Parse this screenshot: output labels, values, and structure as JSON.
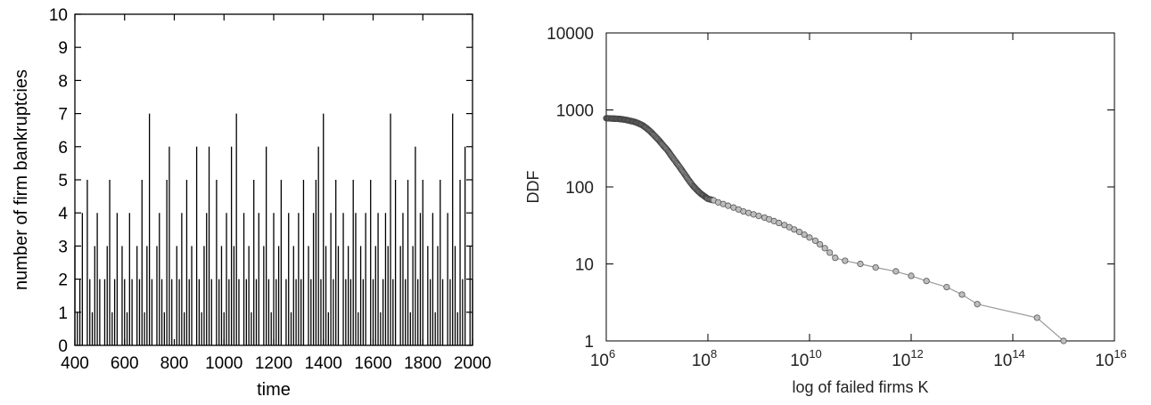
{
  "chart_data": [
    {
      "type": "line",
      "title": "",
      "xlabel": "time",
      "ylabel": "number of firm bankruptcies",
      "xlim": [
        400,
        2000
      ],
      "ylim": [
        0,
        10
      ],
      "x_ticks": [
        "400",
        "600",
        "800",
        "1000",
        "1200",
        "1400",
        "1600",
        "1800",
        "2000"
      ],
      "y_ticks": [
        "0",
        "1",
        "2",
        "3",
        "4",
        "5",
        "6",
        "7",
        "8",
        "9",
        "10"
      ],
      "grid": false,
      "legend": "none",
      "line_color": "#000000",
      "series": [
        {
          "x": [
            400,
            410,
            420,
            430,
            440,
            450,
            460,
            470,
            480,
            490,
            500,
            510,
            520,
            530,
            540,
            550,
            560,
            570,
            580,
            590,
            600,
            610,
            620,
            630,
            640,
            650,
            660,
            670,
            680,
            690,
            700,
            710,
            720,
            730,
            740,
            750,
            760,
            770,
            780,
            790,
            800,
            810,
            820,
            830,
            840,
            850,
            860,
            870,
            880,
            890,
            900,
            910,
            920,
            930,
            940,
            950,
            960,
            970,
            980,
            990,
            1000,
            1010,
            1020,
            1030,
            1040,
            1050,
            1060,
            1070,
            1080,
            1090,
            1100,
            1110,
            1120,
            1130,
            1140,
            1150,
            1160,
            1170,
            1180,
            1190,
            1200,
            1210,
            1220,
            1230,
            1240,
            1250,
            1260,
            1270,
            1280,
            1290,
            1300,
            1310,
            1320,
            1330,
            1340,
            1350,
            1360,
            1370,
            1380,
            1390,
            1400,
            1410,
            1420,
            1430,
            1440,
            1450,
            1460,
            1470,
            1480,
            1490,
            1500,
            1510,
            1520,
            1530,
            1540,
            1550,
            1560,
            1570,
            1580,
            1590,
            1600,
            1610,
            1620,
            1630,
            1640,
            1650,
            1660,
            1670,
            1680,
            1690,
            1700,
            1710,
            1720,
            1730,
            1740,
            1750,
            1760,
            1770,
            1780,
            1790,
            1800,
            1810,
            1820,
            1830,
            1840,
            1850,
            1860,
            1870,
            1880,
            1890,
            1900,
            1910,
            1920,
            1930,
            1940,
            1950,
            1960,
            1970,
            1980,
            1990,
            2000
          ],
          "values": [
            3,
            1,
            2,
            4,
            0,
            5,
            2,
            1,
            3,
            4,
            2,
            0,
            2,
            3,
            5,
            1,
            2,
            4,
            0,
            3,
            2,
            1,
            4,
            2,
            0,
            3,
            2,
            5,
            1,
            3,
            7,
            2,
            0,
            3,
            4,
            2,
            1,
            5,
            6,
            2,
            0,
            3,
            2,
            4,
            1,
            5,
            2,
            3,
            0,
            6,
            2,
            1,
            3,
            4,
            6,
            2,
            0,
            5,
            2,
            3,
            1,
            4,
            2,
            6,
            3,
            7,
            2,
            0,
            4,
            2,
            3,
            1,
            5,
            2,
            4,
            0,
            3,
            6,
            2,
            1,
            4,
            2,
            3,
            5,
            0,
            2,
            4,
            1,
            3,
            2,
            4,
            2,
            5,
            0,
            3,
            2,
            4,
            5,
            6,
            2,
            7,
            3,
            1,
            4,
            2,
            5,
            3,
            0,
            4,
            2,
            3,
            2,
            5,
            4,
            1,
            3,
            2,
            4,
            0,
            5,
            2,
            3,
            4,
            1,
            2,
            4,
            3,
            7,
            2,
            5,
            0,
            3,
            4,
            2,
            5,
            1,
            3,
            6,
            2,
            4,
            5,
            0,
            3,
            2,
            4,
            1,
            3,
            5,
            2,
            0,
            4,
            2,
            7,
            3,
            1,
            5,
            2,
            6,
            0,
            3,
            2
          ]
        }
      ]
    },
    {
      "type": "scatter",
      "title": "",
      "xlabel": "log of failed firms K",
      "ylabel": "DDF",
      "x_scale": "log",
      "y_scale": "log",
      "xlim": [
        1000000,
        10000000000000000
      ],
      "ylim": [
        1,
        10000
      ],
      "x_ticks": [
        {
          "base": "10",
          "exp": "6"
        },
        {
          "base": "10",
          "exp": "8"
        },
        {
          "base": "10",
          "exp": "10"
        },
        {
          "base": "10",
          "exp": "12"
        },
        {
          "base": "10",
          "exp": "14"
        },
        {
          "base": "10",
          "exp": "16"
        }
      ],
      "y_ticks": [
        "1",
        "10",
        "100",
        "1000",
        "10000"
      ],
      "grid": false,
      "legend": "none",
      "marker_color": "#8a8a8a",
      "series": [
        {
          "x": [
            1000000,
            1200000,
            1450000,
            1750000,
            2100000,
            2500000,
            3000000,
            3600000,
            4300000,
            5200000,
            6200000,
            7500000,
            9000000,
            11000000,
            13000000,
            16000000,
            19000000,
            23000000,
            28000000,
            34000000,
            41000000,
            50000000,
            60000000,
            72000000,
            87000000,
            100000000,
            130000000,
            160000000,
            200000000,
            250000000,
            320000000,
            400000000,
            500000000,
            630000000,
            790000000,
            1000000000,
            1300000000,
            1600000000,
            2000000000,
            2500000000,
            3200000000,
            4000000000,
            5000000000,
            6300000000,
            7900000000,
            10000000000,
            13000000000,
            16000000000,
            20000000000,
            25000000000,
            32000000000,
            50000000000,
            100000000000,
            200000000000,
            500000000000,
            1000000000000,
            2000000000000,
            5000000000000,
            10000000000000,
            20000000000000,
            300000000000000,
            1000000000000000
          ],
          "values": [
            780,
            775,
            770,
            765,
            755,
            740,
            720,
            700,
            670,
            630,
            580,
            520,
            460,
            400,
            350,
            300,
            255,
            215,
            180,
            150,
            125,
            105,
            92,
            82,
            75,
            70,
            67,
            63,
            60,
            57,
            54,
            51,
            48,
            46,
            44,
            42,
            40,
            38,
            36,
            34,
            32,
            30,
            28,
            26,
            24,
            22,
            20,
            18,
            16,
            14,
            12,
            11,
            10,
            9,
            8,
            7,
            6,
            5,
            4,
            3,
            2,
            1
          ]
        }
      ]
    }
  ]
}
